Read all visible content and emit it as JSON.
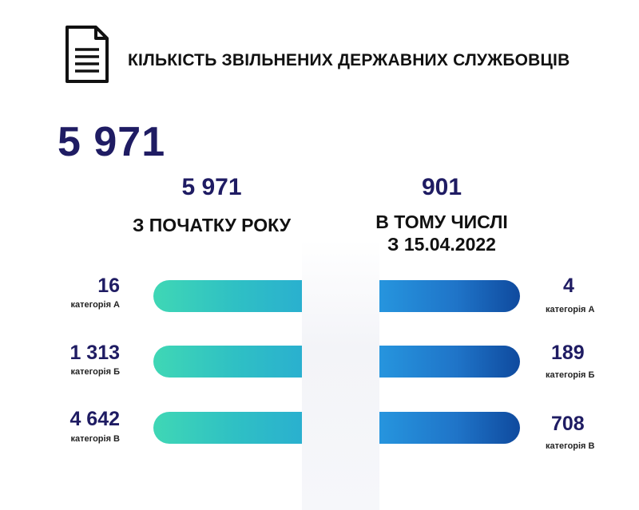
{
  "header": {
    "icon": "document-icon",
    "title": "КІЛЬКІСТЬ ЗВІЛЬНЕНИХ ДЕРЖАВНИХ СЛУЖБОВЦІВ"
  },
  "total": "5 971",
  "left_column": {
    "value": "5 971",
    "caption": "З ПОЧАТКУ РОКУ",
    "rows": [
      {
        "value": "16",
        "category": "категорія А"
      },
      {
        "value": "1 313",
        "category": "категорія Б"
      },
      {
        "value": "4 642",
        "category": "категорія В"
      }
    ]
  },
  "right_column": {
    "value": "901",
    "caption_line1": "В ТОМУ ЧИСЛІ",
    "caption_line2": "З 15.04.2022",
    "rows": [
      {
        "value": "4",
        "category": "категорія А"
      },
      {
        "value": "189",
        "category": "категорія Б"
      },
      {
        "value": "708",
        "category": "категорія В"
      }
    ]
  },
  "colors": {
    "accent_navy": "#1f1c63",
    "left_bar_start": "#3fd7b5",
    "left_bar_end": "#2ab0cf",
    "right_bar_start": "#2695de",
    "right_bar_end": "#0f4a9e"
  }
}
